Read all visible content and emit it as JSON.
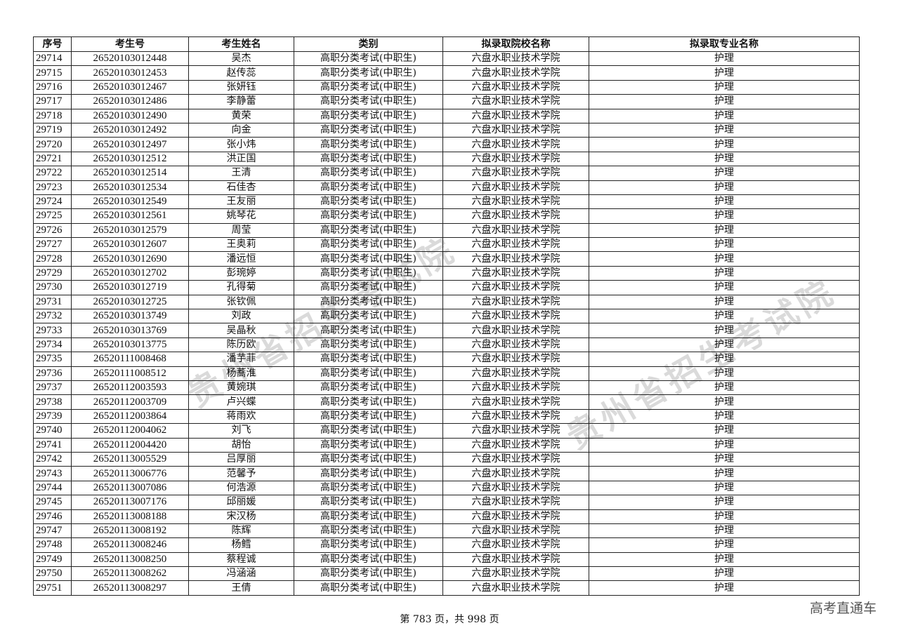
{
  "table": {
    "headers": [
      "序号",
      "考生号",
      "考生姓名",
      "类别",
      "拟录取院校名称",
      "拟录取专业名称"
    ],
    "rows": [
      [
        "29714",
        "26520103012448",
        "吴杰",
        "高职分类考试(中职生)",
        "六盘水职业技术学院",
        "护理"
      ],
      [
        "29715",
        "26520103012453",
        "赵传蕊",
        "高职分类考试(中职生)",
        "六盘水职业技术学院",
        "护理"
      ],
      [
        "29716",
        "26520103012467",
        "张妍钰",
        "高职分类考试(中职生)",
        "六盘水职业技术学院",
        "护理"
      ],
      [
        "29717",
        "26520103012486",
        "李静蕾",
        "高职分类考试(中职生)",
        "六盘水职业技术学院",
        "护理"
      ],
      [
        "29718",
        "26520103012490",
        "黄荣",
        "高职分类考试(中职生)",
        "六盘水职业技术学院",
        "护理"
      ],
      [
        "29719",
        "26520103012492",
        "向金",
        "高职分类考试(中职生)",
        "六盘水职业技术学院",
        "护理"
      ],
      [
        "29720",
        "26520103012497",
        "张小炜",
        "高职分类考试(中职生)",
        "六盘水职业技术学院",
        "护理"
      ],
      [
        "29721",
        "26520103012512",
        "洪正国",
        "高职分类考试(中职生)",
        "六盘水职业技术学院",
        "护理"
      ],
      [
        "29722",
        "26520103012514",
        "王清",
        "高职分类考试(中职生)",
        "六盘水职业技术学院",
        "护理"
      ],
      [
        "29723",
        "26520103012534",
        "石佳杏",
        "高职分类考试(中职生)",
        "六盘水职业技术学院",
        "护理"
      ],
      [
        "29724",
        "26520103012549",
        "王友丽",
        "高职分类考试(中职生)",
        "六盘水职业技术学院",
        "护理"
      ],
      [
        "29725",
        "26520103012561",
        "姚琴花",
        "高职分类考试(中职生)",
        "六盘水职业技术学院",
        "护理"
      ],
      [
        "29726",
        "26520103012579",
        "周莹",
        "高职分类考试(中职生)",
        "六盘水职业技术学院",
        "护理"
      ],
      [
        "29727",
        "26520103012607",
        "王奥莉",
        "高职分类考试(中职生)",
        "六盘水职业技术学院",
        "护理"
      ],
      [
        "29728",
        "26520103012690",
        "潘远恒",
        "高职分类考试(中职生)",
        "六盘水职业技术学院",
        "护理"
      ],
      [
        "29729",
        "26520103012702",
        "彭琬婷",
        "高职分类考试(中职生)",
        "六盘水职业技术学院",
        "护理"
      ],
      [
        "29730",
        "26520103012719",
        "孔得菊",
        "高职分类考试(中职生)",
        "六盘水职业技术学院",
        "护理"
      ],
      [
        "29731",
        "26520103012725",
        "张钦佩",
        "高职分类考试(中职生)",
        "六盘水职业技术学院",
        "护理"
      ],
      [
        "29732",
        "26520103013749",
        "刘政",
        "高职分类考试(中职生)",
        "六盘水职业技术学院",
        "护理"
      ],
      [
        "29733",
        "26520103013769",
        "吴晶秋",
        "高职分类考试(中职生)",
        "六盘水职业技术学院",
        "护理"
      ],
      [
        "29734",
        "26520103013775",
        "陈历欧",
        "高职分类考试(中职生)",
        "六盘水职业技术学院",
        "护理"
      ],
      [
        "29735",
        "26520111008468",
        "潘芋菲",
        "高职分类考试(中职生)",
        "六盘水职业技术学院",
        "护理"
      ],
      [
        "29736",
        "26520111008512",
        "杨蕎淮",
        "高职分类考试(中职生)",
        "六盘水职业技术学院",
        "护理"
      ],
      [
        "29737",
        "26520112003593",
        "黄婉琪",
        "高职分类考试(中职生)",
        "六盘水职业技术学院",
        "护理"
      ],
      [
        "29738",
        "26520112003709",
        "卢兴蝶",
        "高职分类考试(中职生)",
        "六盘水职业技术学院",
        "护理"
      ],
      [
        "29739",
        "26520112003864",
        "蒋雨欢",
        "高职分类考试(中职生)",
        "六盘水职业技术学院",
        "护理"
      ],
      [
        "29740",
        "26520112004062",
        "刘飞",
        "高职分类考试(中职生)",
        "六盘水职业技术学院",
        "护理"
      ],
      [
        "29741",
        "26520112004420",
        "胡怡",
        "高职分类考试(中职生)",
        "六盘水职业技术学院",
        "护理"
      ],
      [
        "29742",
        "26520113005529",
        "吕厚丽",
        "高职分类考试(中职生)",
        "六盘水职业技术学院",
        "护理"
      ],
      [
        "29743",
        "26520113006776",
        "范馨予",
        "高职分类考试(中职生)",
        "六盘水职业技术学院",
        "护理"
      ],
      [
        "29744",
        "26520113007086",
        "何浩源",
        "高职分类考试(中职生)",
        "六盘水职业技术学院",
        "护理"
      ],
      [
        "29745",
        "26520113007176",
        "邱丽媛",
        "高职分类考试(中职生)",
        "六盘水职业技术学院",
        "护理"
      ],
      [
        "29746",
        "26520113008188",
        "宋汉杨",
        "高职分类考试(中职生)",
        "六盘水职业技术学院",
        "护理"
      ],
      [
        "29747",
        "26520113008192",
        "陈辉",
        "高职分类考试(中职生)",
        "六盘水职业技术学院",
        "护理"
      ],
      [
        "29748",
        "26520113008246",
        "杨鳕",
        "高职分类考试(中职生)",
        "六盘水职业技术学院",
        "护理"
      ],
      [
        "29749",
        "26520113008250",
        "蔡程诚",
        "高职分类考试(中职生)",
        "六盘水职业技术学院",
        "护理"
      ],
      [
        "29750",
        "26520113008262",
        "冯涵涵",
        "高职分类考试(中职生)",
        "六盘水职业技术学院",
        "护理"
      ],
      [
        "29751",
        "26520113008297",
        "王倩",
        "高职分类考试(中职生)",
        "六盘水职业技术学院",
        "护理"
      ]
    ]
  },
  "footer": {
    "page_text": "第 783 页，共 998 页"
  },
  "watermarks": {
    "seal": "贵州省招生考试院",
    "brand": "高考直通车"
  }
}
